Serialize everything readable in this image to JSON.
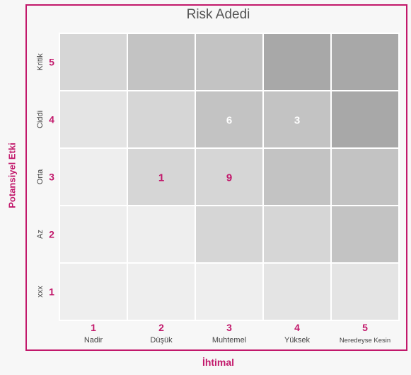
{
  "chart_data": {
    "type": "heatmap",
    "title": "Risk Adedi",
    "xlabel": "İhtimal",
    "ylabel": "Potansiyel Etki",
    "x_categories": [
      {
        "num": "1",
        "name": "Nadir"
      },
      {
        "num": "2",
        "name": "Düşük"
      },
      {
        "num": "3",
        "name": "Muhtemel"
      },
      {
        "num": "4",
        "name": "Yüksek"
      },
      {
        "num": "5",
        "name": "Neredeyse Kesin"
      }
    ],
    "y_categories": [
      {
        "num": "1",
        "name": "xxx"
      },
      {
        "num": "2",
        "name": "Az"
      },
      {
        "num": "3",
        "name": "Orta"
      },
      {
        "num": "4",
        "name": "Ciddi"
      },
      {
        "num": "5",
        "name": "Kritik"
      }
    ],
    "cells": [
      {
        "x": 1,
        "y": 5,
        "value": "",
        "color": "#d6d6d6"
      },
      {
        "x": 2,
        "y": 5,
        "value": "",
        "color": "#c3c3c3"
      },
      {
        "x": 3,
        "y": 5,
        "value": "",
        "color": "#c3c3c3"
      },
      {
        "x": 4,
        "y": 5,
        "value": "",
        "color": "#a8a8a8"
      },
      {
        "x": 5,
        "y": 5,
        "value": "",
        "color": "#a8a8a8"
      },
      {
        "x": 1,
        "y": 4,
        "value": "",
        "color": "#e4e4e4"
      },
      {
        "x": 2,
        "y": 4,
        "value": "",
        "color": "#d6d6d6"
      },
      {
        "x": 3,
        "y": 4,
        "value": "6",
        "color": "#c3c3c3"
      },
      {
        "x": 4,
        "y": 4,
        "value": "3",
        "color": "#c3c3c3"
      },
      {
        "x": 5,
        "y": 4,
        "value": "",
        "color": "#a8a8a8"
      },
      {
        "x": 1,
        "y": 3,
        "value": "",
        "color": "#eeeeee"
      },
      {
        "x": 2,
        "y": 3,
        "value": "1",
        "color": "#d6d6d6"
      },
      {
        "x": 3,
        "y": 3,
        "value": "9",
        "color": "#d6d6d6"
      },
      {
        "x": 4,
        "y": 3,
        "value": "",
        "color": "#c3c3c3"
      },
      {
        "x": 5,
        "y": 3,
        "value": "",
        "color": "#c3c3c3"
      },
      {
        "x": 1,
        "y": 2,
        "value": "",
        "color": "#eeeeee"
      },
      {
        "x": 2,
        "y": 2,
        "value": "",
        "color": "#eeeeee"
      },
      {
        "x": 3,
        "y": 2,
        "value": "",
        "color": "#d6d6d6"
      },
      {
        "x": 4,
        "y": 2,
        "value": "",
        "color": "#d6d6d6"
      },
      {
        "x": 5,
        "y": 2,
        "value": "",
        "color": "#c3c3c3"
      },
      {
        "x": 1,
        "y": 1,
        "value": "",
        "color": "#eeeeee"
      },
      {
        "x": 2,
        "y": 1,
        "value": "",
        "color": "#eeeeee"
      },
      {
        "x": 3,
        "y": 1,
        "value": "",
        "color": "#eeeeee"
      },
      {
        "x": 4,
        "y": 1,
        "value": "",
        "color": "#e4e4e4"
      },
      {
        "x": 5,
        "y": 1,
        "value": "",
        "color": "#e4e4e4"
      }
    ],
    "colors": {
      "accent": "#c2186b",
      "value_dark": "#c2186b",
      "value_light": "#ffffff",
      "label_text": "#444444"
    }
  }
}
